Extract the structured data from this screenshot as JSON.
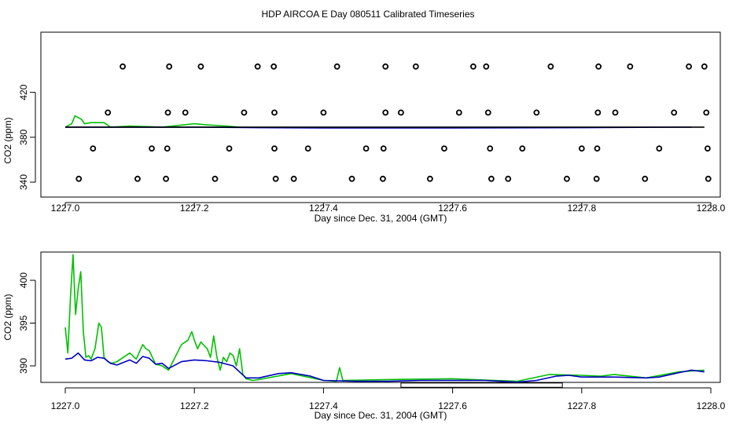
{
  "title": "HDP AIRCOA E  Day 080511  Calibrated Timeseries",
  "colors": {
    "series_green": "#00c000",
    "series_blue": "#0000c0",
    "series_black": "#000000",
    "axis": "#000000"
  },
  "chart_data": [
    {
      "type": "line",
      "xlabel": "Day since Dec. 31, 2004 (GMT)",
      "ylabel": "CO2 (ppm)",
      "xlim": [
        1227.0,
        1228.0
      ],
      "x_ticks": [
        "1227.0",
        "1227.2",
        "1227.4",
        "1227.6",
        "1227.8",
        "1228.0"
      ],
      "y_ticks": [
        "340",
        "380",
        "420"
      ],
      "series": [
        {
          "color": "green",
          "x": [
            1227.0,
            1227.01,
            1227.015,
            1227.025,
            1227.03,
            1227.04,
            1227.06,
            1227.07,
            1227.1,
            1227.15,
            1227.2,
            1227.22,
            1227.25,
            1227.27
          ],
          "y": [
            389,
            392,
            399,
            396,
            392,
            393,
            393,
            389,
            390,
            389,
            392,
            391,
            390,
            389
          ]
        },
        {
          "color": "blue",
          "x": [
            1227.0,
            1227.1,
            1227.2,
            1227.3,
            1227.4,
            1227.6,
            1227.8,
            1227.95,
            1227.97
          ],
          "y": [
            389,
            389,
            389,
            388.5,
            388.3,
            388.3,
            388.5,
            389,
            389
          ]
        },
        {
          "color": "black",
          "x": [
            1227.0,
            1227.99
          ],
          "y": [
            389,
            389
          ]
        }
      ],
      "points": [
        {
          "x": 1227.089,
          "y": 443
        },
        {
          "x": 1227.161,
          "y": 443
        },
        {
          "x": 1227.21,
          "y": 443
        },
        {
          "x": 1227.298,
          "y": 443
        },
        {
          "x": 1227.323,
          "y": 443
        },
        {
          "x": 1227.421,
          "y": 443
        },
        {
          "x": 1227.496,
          "y": 443
        },
        {
          "x": 1227.543,
          "y": 443
        },
        {
          "x": 1227.632,
          "y": 443
        },
        {
          "x": 1227.652,
          "y": 443
        },
        {
          "x": 1227.752,
          "y": 443
        },
        {
          "x": 1227.826,
          "y": 443
        },
        {
          "x": 1227.875,
          "y": 443
        },
        {
          "x": 1227.966,
          "y": 443
        },
        {
          "x": 1227.99,
          "y": 443
        },
        {
          "x": 1227.066,
          "y": 402
        },
        {
          "x": 1227.159,
          "y": 402
        },
        {
          "x": 1227.186,
          "y": 402
        },
        {
          "x": 1227.277,
          "y": 402
        },
        {
          "x": 1227.324,
          "y": 402
        },
        {
          "x": 1227.4,
          "y": 402
        },
        {
          "x": 1227.496,
          "y": 402
        },
        {
          "x": 1227.52,
          "y": 402
        },
        {
          "x": 1227.61,
          "y": 402
        },
        {
          "x": 1227.655,
          "y": 402
        },
        {
          "x": 1227.73,
          "y": 402
        },
        {
          "x": 1227.825,
          "y": 402
        },
        {
          "x": 1227.852,
          "y": 402
        },
        {
          "x": 1227.943,
          "y": 402
        },
        {
          "x": 1227.993,
          "y": 402
        },
        {
          "x": 1227.043,
          "y": 370
        },
        {
          "x": 1227.134,
          "y": 370
        },
        {
          "x": 1227.158,
          "y": 370
        },
        {
          "x": 1227.254,
          "y": 370
        },
        {
          "x": 1227.324,
          "y": 370
        },
        {
          "x": 1227.376,
          "y": 370
        },
        {
          "x": 1227.466,
          "y": 370
        },
        {
          "x": 1227.493,
          "y": 370
        },
        {
          "x": 1227.587,
          "y": 370
        },
        {
          "x": 1227.658,
          "y": 370
        },
        {
          "x": 1227.708,
          "y": 370
        },
        {
          "x": 1227.8,
          "y": 370
        },
        {
          "x": 1227.824,
          "y": 370
        },
        {
          "x": 1227.92,
          "y": 370
        },
        {
          "x": 1227.995,
          "y": 370
        },
        {
          "x": 1227.021,
          "y": 343
        },
        {
          "x": 1227.112,
          "y": 343
        },
        {
          "x": 1227.156,
          "y": 343
        },
        {
          "x": 1227.232,
          "y": 343
        },
        {
          "x": 1227.326,
          "y": 343
        },
        {
          "x": 1227.354,
          "y": 343
        },
        {
          "x": 1227.444,
          "y": 343
        },
        {
          "x": 1227.492,
          "y": 343
        },
        {
          "x": 1227.565,
          "y": 343
        },
        {
          "x": 1227.66,
          "y": 343
        },
        {
          "x": 1227.686,
          "y": 343
        },
        {
          "x": 1227.777,
          "y": 343
        },
        {
          "x": 1227.823,
          "y": 343
        },
        {
          "x": 1227.898,
          "y": 343
        },
        {
          "x": 1227.996,
          "y": 343
        }
      ]
    },
    {
      "type": "line",
      "xlabel": "Day since Dec. 31, 2004 (GMT)",
      "ylabel": "CO2 (ppm)",
      "xlim": [
        1227.0,
        1228.0
      ],
      "x_ticks": [
        "1227.0",
        "1227.2",
        "1227.4",
        "1227.6",
        "1227.8",
        "1228.0"
      ],
      "y_ticks": [
        "390",
        "395",
        "400"
      ],
      "series": [
        {
          "color": "green",
          "x": [
            1227.0,
            1227.004,
            1227.008,
            1227.012,
            1227.016,
            1227.02,
            1227.024,
            1227.028,
            1227.032,
            1227.036,
            1227.04,
            1227.046,
            1227.052,
            1227.056,
            1227.06,
            1227.066,
            1227.072,
            1227.08,
            1227.09,
            1227.1,
            1227.11,
            1227.12,
            1227.125,
            1227.13,
            1227.14,
            1227.15,
            1227.16,
            1227.17,
            1227.18,
            1227.19,
            1227.196,
            1227.2,
            1227.205,
            1227.21,
            1227.22,
            1227.225,
            1227.23,
            1227.235,
            1227.24,
            1227.245,
            1227.25,
            1227.255,
            1227.26,
            1227.265,
            1227.27,
            1227.275,
            1227.28,
            1227.285,
            1227.29,
            1227.3,
            1227.35,
            1227.4,
            1227.42,
            1227.425,
            1227.43,
            1227.5,
            1227.6,
            1227.7,
            1227.75,
            1227.8,
            1227.83,
            1227.85,
            1227.9,
            1227.95,
            1227.99
          ],
          "y": [
            394.5,
            391.5,
            398,
            403,
            396,
            399,
            401,
            394,
            391,
            391.2,
            390.8,
            392,
            395,
            394.5,
            391,
            390.5,
            390.3,
            390.5,
            391,
            391.5,
            390.8,
            392.5,
            392,
            391.8,
            390.2,
            390,
            389.5,
            391,
            392.5,
            393,
            394,
            393,
            392,
            392.8,
            392,
            391,
            393.5,
            391,
            389.5,
            391,
            390.5,
            391.5,
            391.2,
            390,
            392,
            389,
            388.5,
            388.4,
            388.3,
            388.4,
            389.1,
            388.3,
            388.2,
            389.8,
            388.3,
            388.4,
            388.5,
            388.2,
            389,
            388.9,
            388.8,
            389,
            388.6,
            389.3,
            389.5
          ]
        },
        {
          "color": "blue",
          "x": [
            1227.0,
            1227.01,
            1227.02,
            1227.03,
            1227.04,
            1227.05,
            1227.06,
            1227.07,
            1227.08,
            1227.09,
            1227.1,
            1227.11,
            1227.12,
            1227.13,
            1227.14,
            1227.15,
            1227.16,
            1227.18,
            1227.2,
            1227.22,
            1227.24,
            1227.26,
            1227.28,
            1227.3,
            1227.33,
            1227.35,
            1227.38,
            1227.4,
            1227.45,
            1227.5,
            1227.55,
            1227.6,
            1227.65,
            1227.7,
            1227.73,
            1227.76,
            1227.78,
            1227.8,
            1227.85,
            1227.9,
            1227.92,
            1227.95,
            1227.97,
            1227.99
          ],
          "y": [
            390.8,
            390.9,
            391.5,
            390.7,
            390.6,
            391,
            390.9,
            390.3,
            390.1,
            390.4,
            390.7,
            390.3,
            391.1,
            390.9,
            390.2,
            390.3,
            389.7,
            390.5,
            390.7,
            390.6,
            390.4,
            390,
            388.6,
            388.6,
            389.1,
            389.2,
            388.8,
            388.3,
            388.2,
            388.2,
            388.3,
            388.3,
            388.3,
            388.1,
            388.3,
            388.8,
            388.9,
            388.7,
            388.7,
            388.6,
            388.7,
            389.2,
            389.5,
            389.3
          ]
        }
      ],
      "annotations": [
        {
          "shape": "rect",
          "x0": 1227.52,
          "x1": 1227.77,
          "y0": 387.5,
          "y1": 388.0
        }
      ]
    }
  ]
}
